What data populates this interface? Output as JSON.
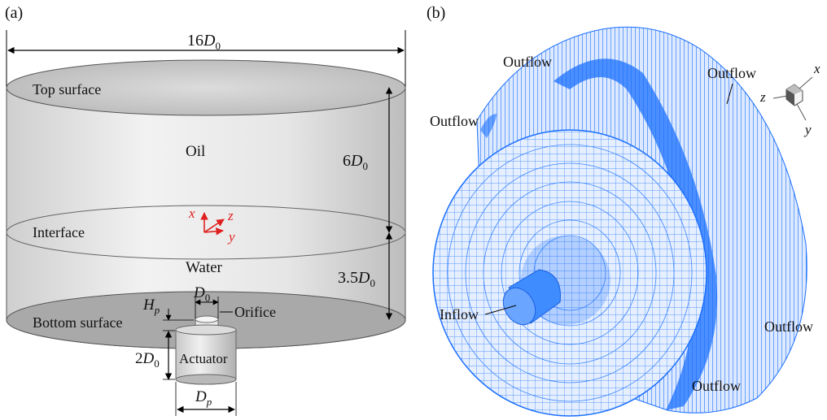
{
  "panel_a": {
    "tag": "(a)",
    "width_label": {
      "main": "16",
      "var": "D",
      "sub": "0"
    },
    "top_surface": "Top surface",
    "oil": "Oil",
    "interface": "Interface",
    "water": "Water",
    "bottom_surface": "Bottom surface",
    "oil_height": {
      "main": "6",
      "var": "D",
      "sub": "0"
    },
    "water_height": {
      "main": "3.5",
      "var": "D",
      "sub": "0"
    },
    "hp": {
      "var": "H",
      "sub": "p"
    },
    "d0": {
      "var": "D",
      "sub": "0"
    },
    "orifice": "Orifice",
    "actuator_height": {
      "main": "2",
      "var": "D",
      "sub": "0"
    },
    "actuator": "Actuator",
    "dp": {
      "var": "D",
      "sub": "p"
    },
    "axes": {
      "x": "x",
      "y": "y",
      "z": "z",
      "color": "#e02020"
    }
  },
  "panel_b": {
    "tag": "(b)",
    "outflow": "Outflow",
    "inflow": "Inflow",
    "axes": {
      "x": "x",
      "y": "y",
      "z": "z"
    },
    "mesh_color": "#1a6fff"
  }
}
